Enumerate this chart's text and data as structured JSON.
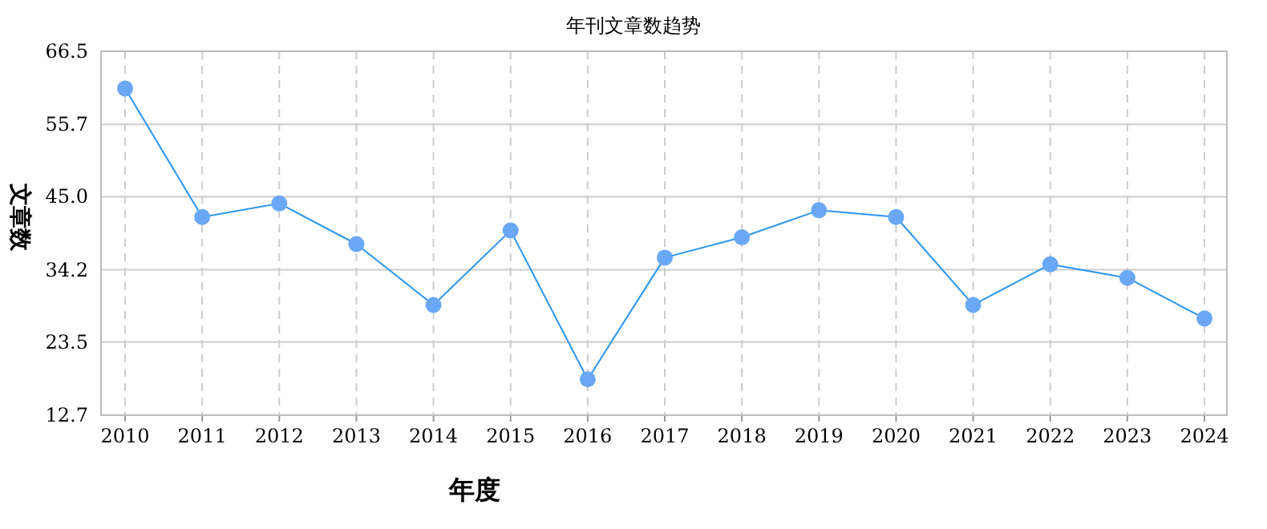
{
  "chart_data": {
    "type": "line",
    "title": "年刊文章数趋势",
    "xlabel": "年度",
    "ylabel": "文章数",
    "categories": [
      "2010",
      "2011",
      "2012",
      "2013",
      "2014",
      "2015",
      "2016",
      "2017",
      "2018",
      "2019",
      "2020",
      "2021",
      "2022",
      "2023",
      "2024"
    ],
    "series": [
      {
        "color": "#2a95f0",
        "values": [
          61,
          42,
          44,
          38,
          29,
          40,
          18,
          36,
          39,
          43,
          42,
          29,
          35,
          33,
          27
        ]
      }
    ],
    "ylim": [
      12.7,
      66.5
    ],
    "yticks": [
      12.7,
      23.5,
      34.2,
      {
        "value": 45,
        "label": "45.0"
      },
      55.7,
      66.5
    ],
    "grid": true,
    "marker": "circle",
    "line_style": "solid"
  }
}
